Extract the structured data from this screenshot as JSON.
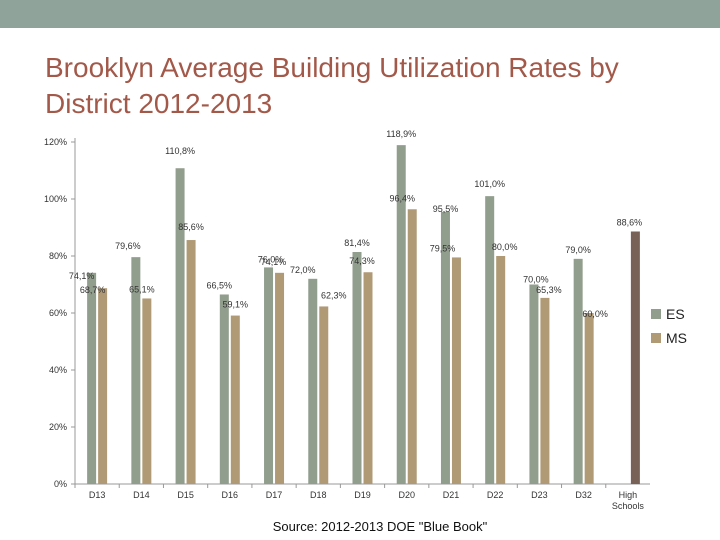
{
  "title": "Brooklyn Average Building Utilization Rates by District 2012-2013",
  "source": "Source: 2012-2013 DOE \"Blue Book\"",
  "colors": {
    "top_bar": "#8fa39a",
    "title": "#a3594a",
    "es": "#929e8d",
    "ms": "#b09a76",
    "high_schools": "#786258",
    "axis": "#999999"
  },
  "chart_data": {
    "type": "bar",
    "title": "Brooklyn Average Building Utilization Rates by District 2012-2013",
    "xlabel": "",
    "ylabel": "",
    "ylim": [
      0,
      120
    ],
    "y_ticks": [
      "0%",
      "20%",
      "40%",
      "60%",
      "80%",
      "100%",
      "120%"
    ],
    "y_tick_values": [
      0,
      20,
      40,
      60,
      80,
      100,
      120
    ],
    "grid": false,
    "legend_position": "right",
    "categories": [
      "D13",
      "D14",
      "D15",
      "D16",
      "D17",
      "D18",
      "D19",
      "D20",
      "D21",
      "D22",
      "D23",
      "D32",
      "High Schools"
    ],
    "series": [
      {
        "name": "ES",
        "values": [
          74.1,
          79.6,
          110.8,
          66.5,
          76.0,
          72.0,
          81.4,
          118.9,
          95.5,
          101.0,
          70.0,
          79.0,
          null
        ],
        "labels": [
          "74,1%",
          "79,6%",
          "110,8%",
          "66,5%",
          "76,0%",
          "72,0%",
          "81,4%",
          "118,9%",
          "95,5%",
          "101,0%",
          "70,0%",
          "79,0%",
          ""
        ]
      },
      {
        "name": "MS",
        "values": [
          68.7,
          65.1,
          85.6,
          59.1,
          74.1,
          62.3,
          74.3,
          96.4,
          79.5,
          80.0,
          65.3,
          60.0,
          null
        ],
        "labels": [
          "68,7%",
          "65,1%",
          "85,6%",
          "59,1%",
          "74,1%",
          "62,3%",
          "74,3%",
          "96,4%",
          "79,5%",
          "80,0%",
          "65,3%",
          "60,0%",
          ""
        ]
      },
      {
        "values": [
          null,
          null,
          null,
          null,
          null,
          null,
          null,
          null,
          null,
          null,
          null,
          null,
          88.6
        ],
        "labels": [
          "",
          "",
          "",
          "",
          "",
          "",
          "",
          "",
          "",
          "",
          "",
          "",
          "88,6%"
        ]
      }
    ]
  }
}
